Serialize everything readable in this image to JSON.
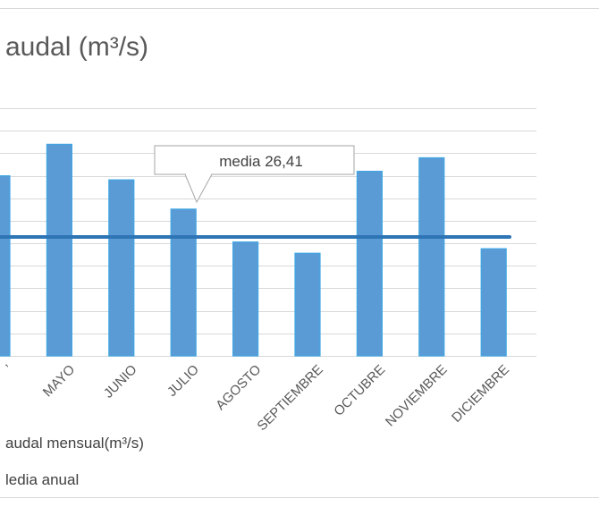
{
  "chart_data": {
    "type": "bar",
    "title": "audal (m³/s)",
    "categories": [
      "’",
      "MAYO",
      "JUNIO",
      "JULIO",
      "AGOSTO",
      "SEPTIEMBRE",
      "OCTUBRE",
      "NOVIEMBRE",
      "DICIEMBRE"
    ],
    "series": [
      {
        "name": "audal mensual(m³/s)",
        "values": [
          40.0,
          47.0,
          39.1,
          32.6,
          25.3,
          22.8,
          41.0,
          44.0,
          23.8
        ]
      }
    ],
    "mean_line": {
      "name": "ledia anual",
      "value": 26.41
    },
    "annotation": {
      "text": "media 26,41"
    },
    "ylim": [
      0,
      58
    ],
    "y_gridline_step": 5,
    "grid": true,
    "xlabel": "",
    "ylabel": "",
    "legend_position": "bottom",
    "colors": {
      "bar_fill": "#5b9bd5",
      "bar_edge": "#41a6e3",
      "mean_line": "#2e75b6",
      "grid": "#d9d9d9",
      "text": "#595959"
    }
  }
}
